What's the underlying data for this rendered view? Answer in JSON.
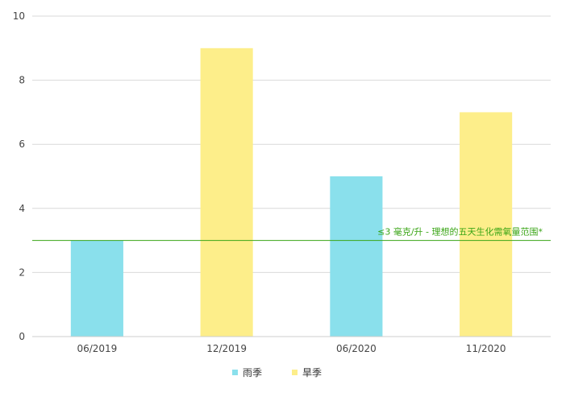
{
  "chart_data": {
    "type": "bar",
    "categories": [
      "06/2019",
      "12/2019",
      "06/2020",
      "11/2020"
    ],
    "values": [
      3,
      9,
      5,
      7
    ],
    "season": [
      "rain",
      "dry",
      "rain",
      "dry"
    ],
    "ylim": [
      0,
      10
    ],
    "yticks": [
      0,
      2,
      4,
      6,
      8,
      10
    ],
    "grid": true,
    "legend": {
      "placement": "bottom",
      "entries": [
        {
          "key": "rain",
          "label": "雨季",
          "color": "#8ae0ec"
        },
        {
          "key": "dry",
          "label": "旱季",
          "color": "#fdee8a"
        }
      ]
    },
    "reference_line": {
      "value": 3,
      "label": "≤3 毫克/升 - 理想的五天生化需氧量范围*",
      "color": "#3aa516"
    }
  }
}
